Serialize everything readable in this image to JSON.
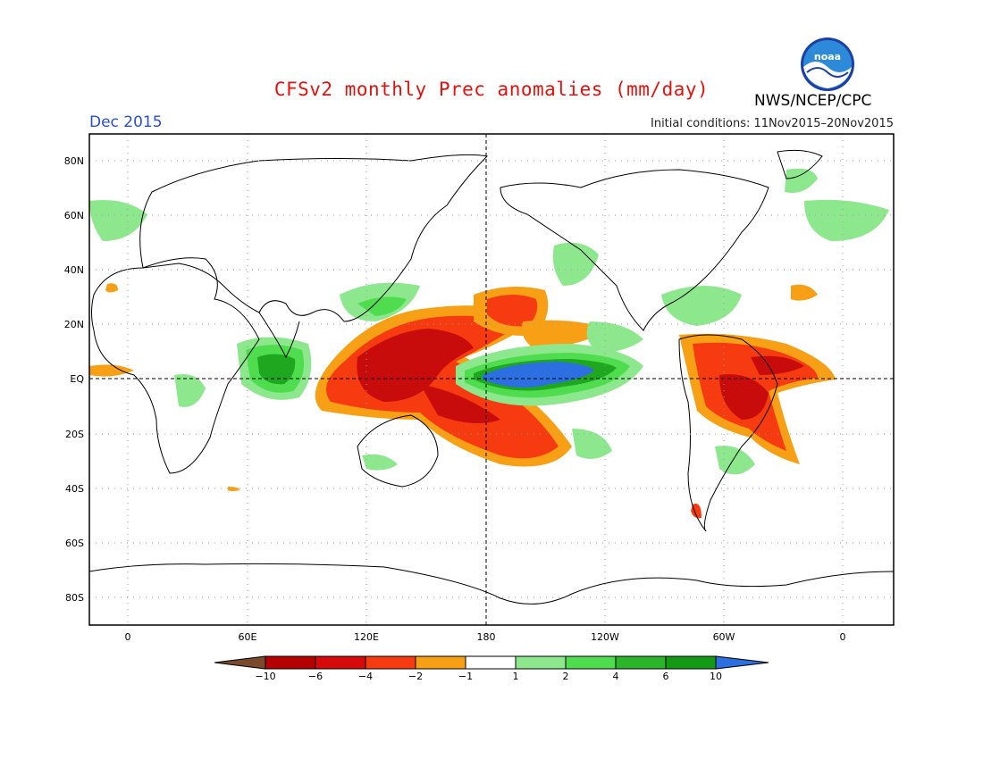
{
  "header": {
    "title": "CFSv2 monthly Prec anomalies (mm/day)",
    "month": "Dec 2015",
    "initial_conditions": "Initial conditions: 11Nov2015–20Nov2015",
    "agency": "NWS/NCEP/CPC",
    "logo_text": "noaa"
  },
  "axes": {
    "lat_labels": [
      "80N",
      "60N",
      "40N",
      "20N",
      "EQ",
      "20S",
      "40S",
      "60S",
      "80S"
    ],
    "lon_labels": [
      "0",
      "60E",
      "120E",
      "180",
      "120W",
      "60W",
      "0"
    ]
  },
  "colorbar": {
    "labels": [
      "-10",
      "-6",
      "-4",
      "-2",
      "-1",
      "1",
      "2",
      "4",
      "6",
      "10"
    ],
    "colors": [
      "#7a4a2a",
      "#b40000",
      "#d60a0a",
      "#f53b0f",
      "#f7a015",
      "#ffffff",
      "#8de88d",
      "#4fdd4f",
      "#2bb52b",
      "#139913",
      "#2c6fe0"
    ]
  },
  "colors": {
    "title": "#e8100c",
    "month": "#2a4fd6",
    "dry_strong": "#c80c0c",
    "dry_mid": "#f23c10",
    "dry_weak": "#f7a015",
    "wet_weak": "#8de88d",
    "wet_mid": "#4fdd4f",
    "wet_strong": "#1fa81f",
    "wet_extreme": "#2c6fe0"
  }
}
